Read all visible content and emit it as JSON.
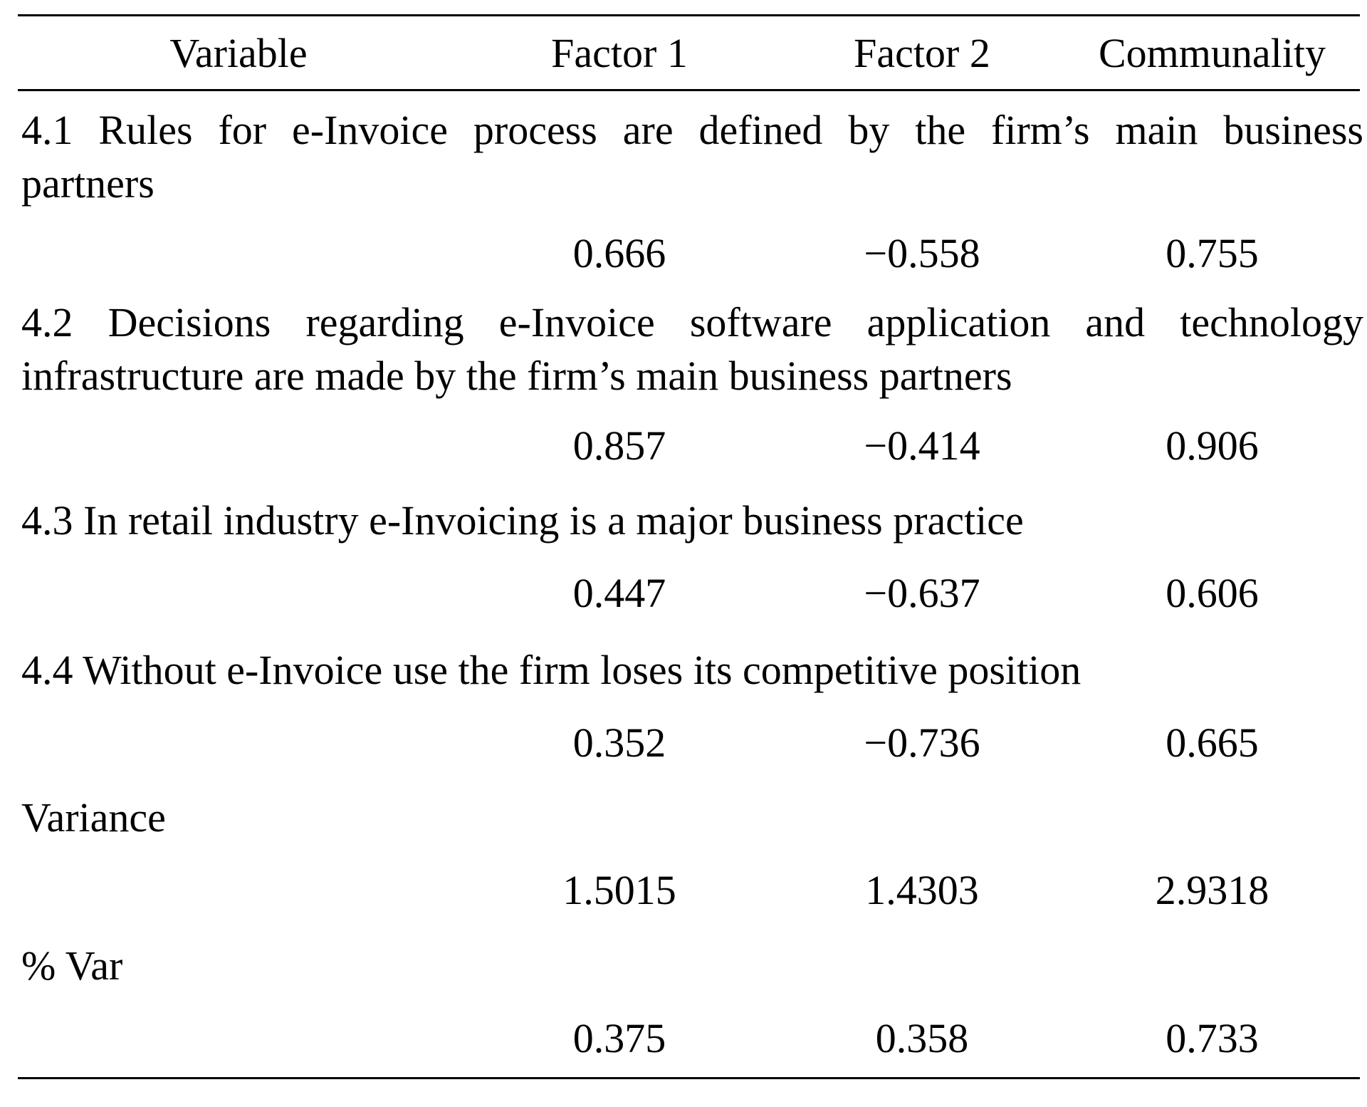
{
  "table": {
    "headers": {
      "variable": "Variable",
      "factor1": "Factor 1",
      "factor2": "Factor 2",
      "communality": "Communality"
    },
    "rows": [
      {
        "label_line1": "4.1 Rules for e-Invoice process are defined by the firm’s main business",
        "label_line2": "partners",
        "factor1": "0.666",
        "factor2": "−0.558",
        "communality": "0.755"
      },
      {
        "label_line1": "4.2 Decisions regarding e-Invoice software application and technology",
        "label_line2": "infrastructure are made by the firm’s main business partners",
        "factor1": "0.857",
        "factor2": "−0.414",
        "communality": "0.906"
      },
      {
        "label": "4.3 In retail industry e-Invoicing is a major business practice",
        "factor1": "0.447",
        "factor2": "−0.637",
        "communality": "0.606"
      },
      {
        "label": "4.4 Without e-Invoice use the firm loses its competitive position",
        "factor1": "0.352",
        "factor2": "−0.736",
        "communality": "0.665"
      },
      {
        "label": "Variance",
        "factor1": "1.5015",
        "factor2": "1.4303",
        "communality": "2.9318"
      },
      {
        "label": "% Var",
        "factor1": "0.375",
        "factor2": "0.358",
        "communality": "0.733"
      }
    ]
  }
}
